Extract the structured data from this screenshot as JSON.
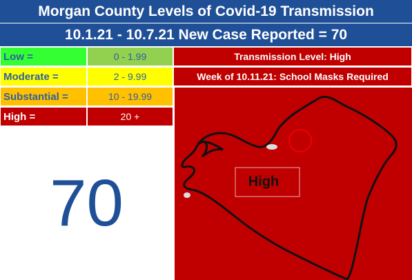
{
  "header": {
    "title": "Morgan County Levels of Covid-19 Transmission",
    "subtitle": "10.1.21 - 10.7.21 New Case Reported = 70"
  },
  "table": {
    "rows": [
      [
        "Low =",
        "0 - 1.99"
      ],
      [
        "Moderate =",
        "2 - 9.99"
      ],
      [
        "Substantial =",
        "10 - 19.99"
      ],
      [
        "High =",
        "20 +"
      ]
    ]
  },
  "case_count": "70",
  "status": {
    "level": "Transmission Level: High",
    "note": "Week of 10.11.21: School Masks Required"
  },
  "map": {
    "label": "High"
  }
}
